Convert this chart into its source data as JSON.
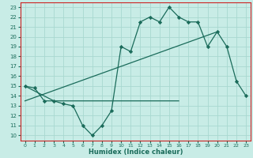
{
  "xlabel": "Humidex (Indice chaleur)",
  "ylabel": "",
  "bg_color": "#c8ece6",
  "grid_color": "#a8d8d0",
  "line_color": "#1a6b5a",
  "spine_color": "#cc2222",
  "xlim": [
    -0.5,
    23.5
  ],
  "ylim": [
    9.5,
    23.5
  ],
  "yticks": [
    10,
    11,
    12,
    13,
    14,
    15,
    16,
    17,
    18,
    19,
    20,
    21,
    22,
    23
  ],
  "xticks": [
    0,
    1,
    2,
    3,
    4,
    5,
    6,
    7,
    8,
    9,
    10,
    11,
    12,
    13,
    14,
    15,
    16,
    17,
    18,
    19,
    20,
    21,
    22,
    23
  ],
  "curve_x": [
    0,
    1,
    2,
    3,
    4,
    5,
    6,
    7,
    8,
    9,
    10,
    11,
    12,
    13,
    14,
    15,
    16,
    17,
    18,
    19,
    20,
    21,
    22,
    23
  ],
  "curve_y": [
    15.0,
    14.8,
    13.5,
    13.5,
    13.2,
    13.0,
    11.0,
    10.0,
    11.0,
    12.5,
    19.0,
    18.5,
    21.5,
    22.0,
    21.5,
    23.0,
    22.0,
    21.5,
    21.5,
    19.0,
    20.5,
    19.0,
    15.5,
    14.0
  ],
  "flat_line_x": [
    0,
    3,
    16
  ],
  "flat_line_y": [
    15.0,
    13.5,
    13.5
  ],
  "diag_line_x": [
    0,
    20
  ],
  "diag_line_y": [
    13.5,
    20.5
  ]
}
